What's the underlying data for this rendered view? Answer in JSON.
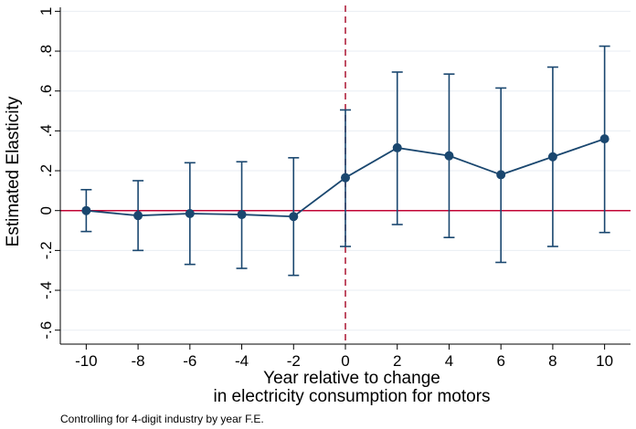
{
  "chart_data": {
    "type": "scatter",
    "title": "",
    "subtitle": "",
    "xlabel_lines": [
      "Year relative to change",
      "in electricity consumption for motors"
    ],
    "ylabel": "Estimated Elasticity",
    "note": "Controlling for 4-digit industry by year F.E.",
    "x_ticks": [
      -10,
      -8,
      -6,
      -4,
      -2,
      0,
      2,
      4,
      6,
      8,
      10
    ],
    "x_tick_labels": [
      "-10",
      "-8",
      "-6",
      "-4",
      "-2",
      "0",
      "2",
      "4",
      "6",
      "8",
      "10"
    ],
    "y_ticks": [
      -0.6,
      -0.4,
      -0.2,
      0,
      0.2,
      0.4,
      0.6,
      0.8,
      1
    ],
    "y_tick_labels": [
      "-.6",
      "-.4",
      "-.2",
      "0",
      ".2",
      ".4",
      ".6",
      ".8",
      "1"
    ],
    "xlim": [
      -11,
      11
    ],
    "ylim": [
      -0.67,
      1.02
    ],
    "grid": "horizontal",
    "reference_line_y": 0,
    "event_line_x": 0,
    "colors": {
      "series": "#1a476f",
      "zero_line": "#c10534",
      "event_line": "#b0223e",
      "grid": "#e9eef3"
    },
    "series": [
      {
        "x": [
          -10,
          -8,
          -6,
          -4,
          -2,
          0,
          2,
          4,
          6,
          8,
          10
        ],
        "y": [
          0.0,
          -0.025,
          -0.015,
          -0.02,
          -0.03,
          0.165,
          0.315,
          0.275,
          0.18,
          0.27,
          0.36
        ],
        "ci_low": [
          -0.105,
          -0.2,
          -0.27,
          -0.29,
          -0.325,
          -0.18,
          -0.07,
          -0.135,
          -0.26,
          -0.18,
          -0.11
        ],
        "ci_high": [
          0.105,
          0.15,
          0.24,
          0.245,
          0.265,
          0.505,
          0.695,
          0.685,
          0.615,
          0.72,
          0.825
        ]
      }
    ]
  }
}
